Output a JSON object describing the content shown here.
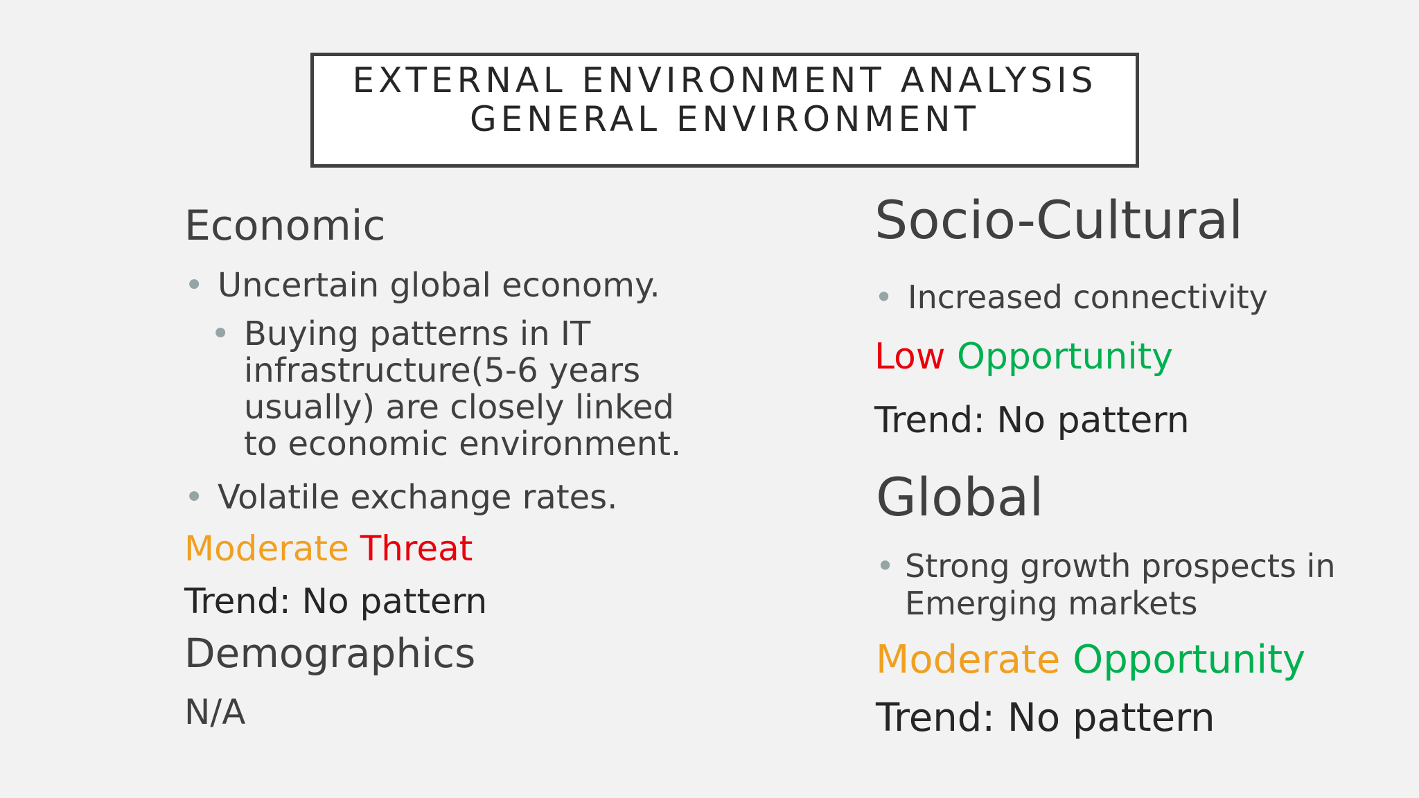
{
  "title": {
    "line1": "EXTERNAL ENVIRONMENT ANALYSIS",
    "line2": "GENERAL ENVIRONMENT"
  },
  "economic": {
    "heading": "Economic",
    "bullet1": "Uncertain global economy.",
    "sub_bullet_lines": [
      "Buying patterns in IT",
      "infrastructure(5-6 years",
      "usually) are closely linked",
      "to economic environment."
    ],
    "bullet2": "Volatile exchange rates.",
    "rating_level": "Moderate",
    "rating_type": "Threat",
    "trend": "Trend: No pattern"
  },
  "demographics": {
    "heading": "Demographics",
    "value": "N/A"
  },
  "socio_cultural": {
    "heading": "Socio-Cultural",
    "bullet1": "Increased connectivity",
    "rating_level": "Low",
    "rating_type": "Opportunity",
    "trend": "Trend: No pattern"
  },
  "global": {
    "heading": "Global",
    "bullet_lines": [
      "Strong growth prospects in",
      "Emerging markets"
    ],
    "rating_level": "Moderate",
    "rating_type": "Opportunity",
    "trend": "Trend: No pattern"
  },
  "colors": {
    "moderate": "#f0a020",
    "threat": "#e8000b",
    "low": "#e8000b",
    "opportunity": "#00b050",
    "bullet": "#95a5a6",
    "text": "#404040",
    "title_border": "#404040"
  }
}
